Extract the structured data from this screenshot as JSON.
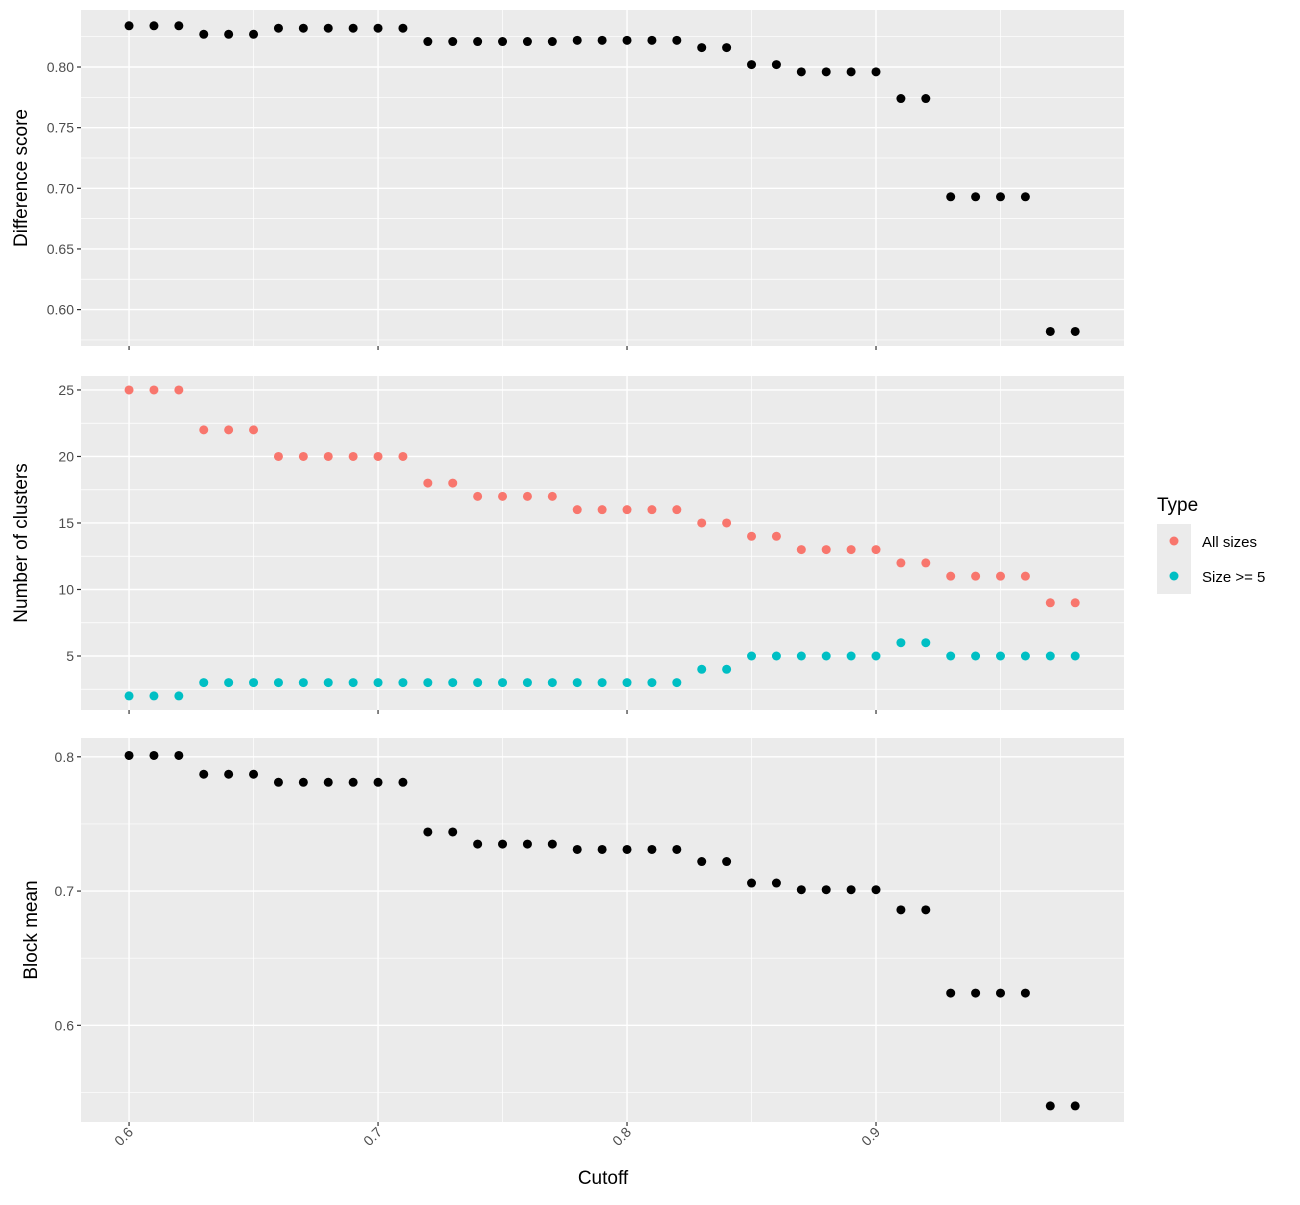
{
  "chart_data": [
    {
      "type": "scatter",
      "ylabel": "Difference score",
      "ylim": [
        0.57,
        0.847
      ],
      "yticks": [
        0.6,
        0.65,
        0.7,
        0.75,
        0.8
      ],
      "ytick_labels": [
        "0.60",
        "0.65",
        "0.70",
        "0.75",
        "0.80"
      ],
      "x": [
        0.6,
        0.61,
        0.62,
        0.63,
        0.64,
        0.65,
        0.66,
        0.67,
        0.68,
        0.69,
        0.7,
        0.71,
        0.72,
        0.73,
        0.74,
        0.75,
        0.76,
        0.77,
        0.78,
        0.79,
        0.8,
        0.81,
        0.82,
        0.83,
        0.84,
        0.85,
        0.86,
        0.87,
        0.88,
        0.89,
        0.9,
        0.91,
        0.92,
        0.93,
        0.94,
        0.95,
        0.96,
        0.97,
        0.98
      ],
      "series": [
        {
          "name": "Difference score",
          "color": "#000000",
          "values": [
            0.834,
            0.834,
            0.834,
            0.827,
            0.827,
            0.827,
            0.832,
            0.832,
            0.832,
            0.832,
            0.832,
            0.832,
            0.821,
            0.821,
            0.821,
            0.821,
            0.821,
            0.821,
            0.822,
            0.822,
            0.822,
            0.822,
            0.822,
            0.816,
            0.816,
            0.802,
            0.802,
            0.796,
            0.796,
            0.796,
            0.796,
            0.774,
            0.774,
            0.693,
            0.693,
            0.693,
            0.693,
            0.582,
            0.582
          ]
        }
      ]
    },
    {
      "type": "scatter",
      "ylabel": "Number of clusters",
      "ylim": [
        0.94,
        26.05
      ],
      "yticks": [
        5,
        10,
        15,
        20,
        25
      ],
      "ytick_labels": [
        "5",
        "10",
        "15",
        "20",
        "25"
      ],
      "x": [
        0.6,
        0.61,
        0.62,
        0.63,
        0.64,
        0.65,
        0.66,
        0.67,
        0.68,
        0.69,
        0.7,
        0.71,
        0.72,
        0.73,
        0.74,
        0.75,
        0.76,
        0.77,
        0.78,
        0.79,
        0.8,
        0.81,
        0.82,
        0.83,
        0.84,
        0.85,
        0.86,
        0.87,
        0.88,
        0.89,
        0.9,
        0.91,
        0.92,
        0.93,
        0.94,
        0.95,
        0.96,
        0.97,
        0.98
      ],
      "series": [
        {
          "name": "All sizes",
          "color": "#F8766D",
          "values": [
            25,
            25,
            25,
            22,
            22,
            22,
            20,
            20,
            20,
            20,
            20,
            20,
            18,
            18,
            17,
            17,
            17,
            17,
            16,
            16,
            16,
            16,
            16,
            15,
            15,
            14,
            14,
            13,
            13,
            13,
            13,
            12,
            12,
            11,
            11,
            11,
            11,
            9,
            9
          ]
        },
        {
          "name": "Size >= 5",
          "color": "#00BFC4",
          "values": [
            2,
            2,
            2,
            3,
            3,
            3,
            3,
            3,
            3,
            3,
            3,
            3,
            3,
            3,
            3,
            3,
            3,
            3,
            3,
            3,
            3,
            3,
            3,
            4,
            4,
            5,
            5,
            5,
            5,
            5,
            5,
            6,
            6,
            5,
            5,
            5,
            5,
            5,
            5
          ]
        }
      ],
      "legend": {
        "title": "Type",
        "entries": [
          "All sizes",
          "Size >= 5"
        ],
        "placement": "right"
      }
    },
    {
      "type": "scatter",
      "ylabel": "Block mean",
      "ylim": [
        0.528,
        0.814
      ],
      "yticks": [
        0.6,
        0.7,
        0.8
      ],
      "ytick_labels": [
        "0.6",
        "0.7",
        "0.8"
      ],
      "x": [
        0.6,
        0.61,
        0.62,
        0.63,
        0.64,
        0.65,
        0.66,
        0.67,
        0.68,
        0.69,
        0.7,
        0.71,
        0.72,
        0.73,
        0.74,
        0.75,
        0.76,
        0.77,
        0.78,
        0.79,
        0.8,
        0.81,
        0.82,
        0.83,
        0.84,
        0.85,
        0.86,
        0.87,
        0.88,
        0.89,
        0.9,
        0.91,
        0.92,
        0.93,
        0.94,
        0.95,
        0.96,
        0.97,
        0.98
      ],
      "series": [
        {
          "name": "Block mean",
          "color": "#000000",
          "values": [
            0.801,
            0.801,
            0.801,
            0.787,
            0.787,
            0.787,
            0.781,
            0.781,
            0.781,
            0.781,
            0.781,
            0.781,
            0.744,
            0.744,
            0.735,
            0.735,
            0.735,
            0.735,
            0.731,
            0.731,
            0.731,
            0.731,
            0.731,
            0.722,
            0.722,
            0.706,
            0.706,
            0.701,
            0.701,
            0.701,
            0.701,
            0.686,
            0.686,
            0.624,
            0.624,
            0.624,
            0.624,
            0.54,
            0.54
          ]
        }
      ]
    }
  ],
  "shared_x": {
    "xlabel": "Cutoff",
    "xlim": [
      0.5807,
      0.9996
    ],
    "xticks": [
      0.6,
      0.7,
      0.8,
      0.9
    ],
    "xtick_labels": [
      "0.6",
      "0.7",
      "0.8",
      "0.9"
    ],
    "xminor": [
      0.65,
      0.75,
      0.85,
      0.95
    ]
  },
  "legend": {
    "title": "Type",
    "entries": [
      {
        "label": "All sizes",
        "color": "#F8766D"
      },
      {
        "label": "Size >= 5",
        "color": "#00BFC4"
      }
    ]
  }
}
